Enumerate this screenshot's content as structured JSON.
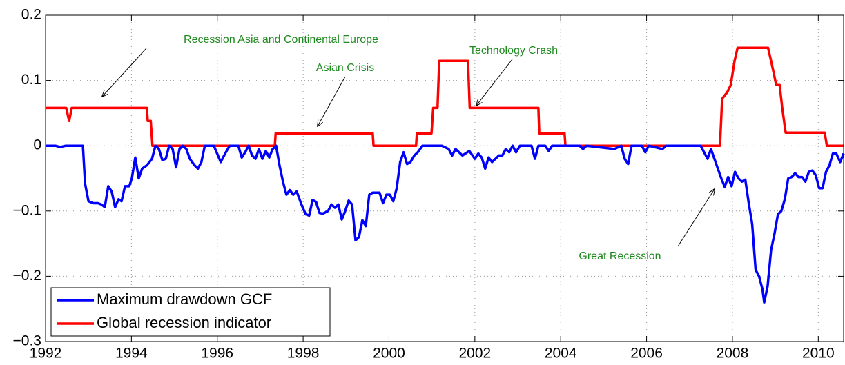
{
  "chart_data": {
    "type": "line",
    "xlim": [
      1992,
      2010.59
    ],
    "ylim": [
      -0.3,
      0.2
    ],
    "xticks": [
      1992,
      1994,
      1996,
      1998,
      2000,
      2002,
      2004,
      2006,
      2008,
      2010
    ],
    "yticks": [
      {
        "value": -0.3,
        "label": "−0.3"
      },
      {
        "value": -0.2,
        "label": "−0.2"
      },
      {
        "value": -0.1,
        "label": "−0.1"
      },
      0,
      0.1,
      0.2
    ],
    "grid": true,
    "legend": "lower left",
    "annotations": [
      "Recession Asia and Continental Europe",
      "Asian Crisis",
      "Technology Crash",
      "Great Recession"
    ],
    "series": [
      {
        "name": "Maximum drawdown GCF",
        "color": "#0000ff",
        "x": [
          1992.0,
          1992.23,
          1992.34,
          1992.47,
          1992.87,
          1992.92,
          1993.0,
          1993.11,
          1993.22,
          1993.3,
          1993.38,
          1993.46,
          1993.54,
          1993.62,
          1993.7,
          1993.77,
          1993.85,
          1993.95,
          1994.01,
          1994.09,
          1994.17,
          1994.25,
          1994.36,
          1994.48,
          1994.56,
          1994.64,
          1994.72,
          1994.8,
          1994.88,
          1994.96,
          1995.04,
          1995.12,
          1995.2,
          1995.28,
          1995.36,
          1995.47,
          1995.55,
          1995.63,
          1995.71,
          1995.92,
          1996.08,
          1996.2,
          1996.29,
          1996.49,
          1996.57,
          1996.65,
          1996.73,
          1996.81,
          1996.89,
          1996.97,
          1997.05,
          1997.13,
          1997.21,
          1997.29,
          1997.37,
          1997.45,
          1997.53,
          1997.61,
          1997.69,
          1997.77,
          1997.85,
          1997.96,
          1998.06,
          1998.14,
          1998.22,
          1998.3,
          1998.38,
          1998.46,
          1998.58,
          1998.66,
          1998.74,
          1998.82,
          1998.9,
          1998.98,
          1999.06,
          1999.14,
          1999.22,
          1999.3,
          1999.38,
          1999.46,
          1999.54,
          1999.62,
          1999.7,
          1999.78,
          1999.86,
          1999.94,
          2000.02,
          2000.1,
          2000.18,
          2000.26,
          2000.34,
          2000.42,
          2000.5,
          2000.59,
          2000.67,
          2000.78,
          2001.23,
          2001.39,
          2001.47,
          2001.55,
          2001.63,
          2001.71,
          2001.87,
          2002.0,
          2002.08,
          2002.16,
          2002.24,
          2002.32,
          2002.4,
          2002.48,
          2002.56,
          2002.64,
          2002.72,
          2002.8,
          2002.88,
          2002.96,
          2003.05,
          2003.32,
          2003.4,
          2003.48,
          2003.64,
          2003.72,
          2003.8,
          2004.44,
          2004.52,
          2004.6,
          2005.25,
          2005.41,
          2005.49,
          2005.57,
          2005.65,
          2005.89,
          2005.97,
          2006.05,
          2006.37,
          2006.45,
          2007.26,
          2007.34,
          2007.42,
          2007.5,
          2007.58,
          2007.66,
          2007.74,
          2007.82,
          2007.9,
          2007.98,
          2008.06,
          2008.14,
          2008.22,
          2008.3,
          2008.38,
          2008.46,
          2008.54,
          2008.62,
          2008.7,
          2008.74,
          2008.82,
          2008.9,
          2008.98,
          2009.06,
          2009.14,
          2009.22,
          2009.3,
          2009.38,
          2009.46,
          2009.54,
          2009.62,
          2009.7,
          2009.78,
          2009.86,
          2009.94,
          2010.02,
          2010.1,
          2010.18,
          2010.26,
          2010.34,
          2010.42,
          2010.51,
          2010.59
        ],
        "values": [
          0,
          0,
          -0.002,
          0,
          0,
          -0.058,
          -0.085,
          -0.088,
          -0.088,
          -0.09,
          -0.094,
          -0.062,
          -0.07,
          -0.094,
          -0.082,
          -0.085,
          -0.062,
          -0.062,
          -0.05,
          -0.018,
          -0.05,
          -0.035,
          -0.03,
          -0.02,
          0,
          -0.005,
          -0.022,
          -0.02,
          0,
          -0.005,
          -0.033,
          -0.005,
          0,
          -0.005,
          -0.02,
          -0.03,
          -0.035,
          -0.025,
          0,
          0,
          -0.025,
          -0.01,
          0,
          0,
          -0.018,
          -0.01,
          0,
          -0.015,
          -0.02,
          -0.005,
          -0.02,
          -0.008,
          -0.018,
          -0.005,
          0,
          -0.03,
          -0.055,
          -0.075,
          -0.068,
          -0.075,
          -0.07,
          -0.09,
          -0.105,
          -0.107,
          -0.083,
          -0.086,
          -0.103,
          -0.104,
          -0.1,
          -0.09,
          -0.095,
          -0.09,
          -0.113,
          -0.1,
          -0.084,
          -0.09,
          -0.145,
          -0.14,
          -0.114,
          -0.123,
          -0.075,
          -0.072,
          -0.072,
          -0.072,
          -0.088,
          -0.075,
          -0.075,
          -0.085,
          -0.065,
          -0.025,
          -0.01,
          -0.028,
          -0.025,
          -0.015,
          -0.01,
          0,
          0,
          -0.005,
          -0.015,
          -0.005,
          -0.01,
          -0.015,
          -0.008,
          -0.02,
          -0.012,
          -0.018,
          -0.035,
          -0.018,
          -0.025,
          -0.02,
          -0.015,
          -0.015,
          -0.005,
          -0.01,
          0,
          -0.01,
          0,
          0,
          -0.02,
          0,
          0,
          -0.008,
          0,
          0,
          -0.005,
          0,
          -0.005,
          0,
          -0.02,
          -0.028,
          0,
          0,
          -0.01,
          0,
          -0.005,
          0,
          0,
          -0.01,
          -0.02,
          -0.005,
          -0.02,
          -0.035,
          -0.05,
          -0.063,
          -0.048,
          -0.062,
          -0.04,
          -0.05,
          -0.055,
          -0.052,
          -0.088,
          -0.12,
          -0.19,
          -0.2,
          -0.22,
          -0.24,
          -0.215,
          -0.16,
          -0.135,
          -0.105,
          -0.1,
          -0.082,
          -0.05,
          -0.048,
          -0.042,
          -0.048,
          -0.048,
          -0.055,
          -0.04,
          -0.038,
          -0.045,
          -0.065,
          -0.065,
          -0.04,
          -0.03,
          -0.012,
          -0.012,
          -0.025,
          -0.012
        ]
      },
      {
        "name": "Global recession indicator",
        "color": "#ff0000",
        "x": [
          1992.0,
          1992.48,
          1992.55,
          1992.61,
          1994.36,
          1994.38,
          1994.45,
          1994.49,
          1997.34,
          1997.36,
          1999.62,
          1999.64,
          2000.63,
          2000.65,
          2000.99,
          2001.03,
          2001.13,
          2001.17,
          2001.84,
          2001.88,
          2003.48,
          2003.5,
          2004.09,
          2004.11,
          2007.71,
          2007.76,
          2007.88,
          2007.96,
          2008.05,
          2008.12,
          2008.83,
          2008.9,
          2008.95,
          2009.02,
          2009.1,
          2009.16,
          2009.24,
          2010.15,
          2010.2,
          2010.59
        ],
        "values": [
          0.058,
          0.058,
          0.038,
          0.058,
          0.058,
          0.038,
          0.038,
          0,
          0,
          0.019,
          0.019,
          0,
          0,
          0.019,
          0.019,
          0.058,
          0.058,
          0.13,
          0.13,
          0.058,
          0.058,
          0.019,
          0.019,
          0,
          0,
          0.072,
          0.082,
          0.093,
          0.13,
          0.15,
          0.15,
          0.13,
          0.115,
          0.093,
          0.093,
          0.058,
          0.02,
          0.02,
          0,
          0
        ]
      }
    ]
  }
}
